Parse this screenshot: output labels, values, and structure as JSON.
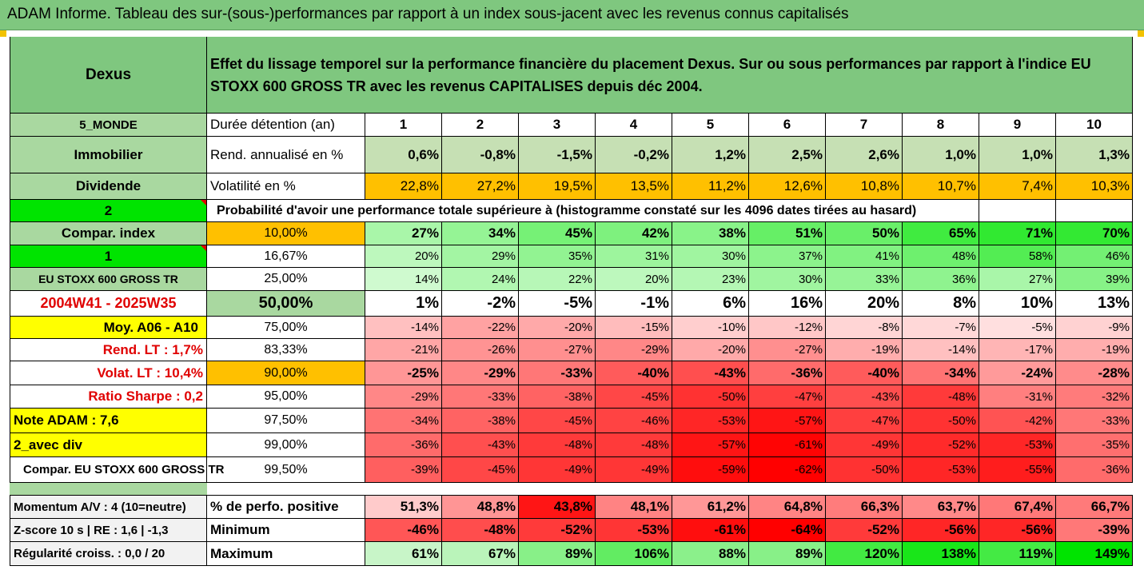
{
  "title": "ADAM Informe. Tableau des sur-(sous-)performances par rapport à un index sous-jacent avec les revenus connus capitalisés",
  "header": {
    "left": "Dexus",
    "line1": "Effet du lissage temporel sur la performance financière du placement Dexus. Sur ou sous performances par rapport à l'indice EU",
    "line2": "STOXX 600 GROSS TR avec les revenus CAPITALISES depuis déc 2004."
  },
  "years": [
    "1",
    "2",
    "3",
    "4",
    "5",
    "6",
    "7",
    "8",
    "9",
    "10"
  ],
  "rows": {
    "duree": {
      "left": "5_MONDE",
      "label": "Durée détention (an)"
    },
    "rend": {
      "left": "Immobilier",
      "label": "Rend. annualisé en %",
      "values": [
        "0,6%",
        "-0,8%",
        "-1,5%",
        "-0,2%",
        "1,2%",
        "2,5%",
        "2,6%",
        "1,0%",
        "1,0%",
        "1,3%"
      ]
    },
    "vol": {
      "left": "Dividende",
      "label": "Volatilité en %",
      "values": [
        "22,8%",
        "27,2%",
        "19,5%",
        "13,5%",
        "11,2%",
        "12,6%",
        "10,8%",
        "10,7%",
        "7,4%",
        "10,3%"
      ]
    },
    "proba": {
      "left": "2",
      "text": "Probabilité d'avoir une performance totale supérieure à (histogramme constaté sur les 4096 dates tirées au hasard)"
    }
  },
  "grid": [
    {
      "left": "Compar. index",
      "pct": "10,00%",
      "values": [
        "27%",
        "34%",
        "45%",
        "42%",
        "38%",
        "51%",
        "50%",
        "65%",
        "71%",
        "70%"
      ]
    },
    {
      "left": "1",
      "pct": "16,67%",
      "values": [
        "20%",
        "29%",
        "35%",
        "31%",
        "30%",
        "37%",
        "41%",
        "48%",
        "58%",
        "46%"
      ]
    },
    {
      "left": "EU STOXX 600 GROSS TR",
      "pct": "25,00%",
      "values": [
        "14%",
        "24%",
        "22%",
        "20%",
        "23%",
        "30%",
        "33%",
        "36%",
        "27%",
        "39%"
      ]
    },
    {
      "left": "2004W41 - 2025W35",
      "pct": "50,00%",
      "values": [
        "1%",
        "-2%",
        "-5%",
        "-1%",
        "6%",
        "16%",
        "20%",
        "8%",
        "10%",
        "13%"
      ]
    },
    {
      "left": "Moy. A06 - A10",
      "pct": "75,00%",
      "values": [
        "-14%",
        "-22%",
        "-20%",
        "-15%",
        "-10%",
        "-12%",
        "-8%",
        "-7%",
        "-5%",
        "-9%"
      ]
    },
    {
      "left": "Rend. LT :   1,7%",
      "pct": "83,33%",
      "values": [
        "-21%",
        "-26%",
        "-27%",
        "-29%",
        "-20%",
        "-27%",
        "-19%",
        "-14%",
        "-17%",
        "-19%"
      ]
    },
    {
      "left": "Volat. LT :   10,4%",
      "pct": "90,00%",
      "values": [
        "-25%",
        "-29%",
        "-33%",
        "-40%",
        "-43%",
        "-36%",
        "-40%",
        "-34%",
        "-24%",
        "-28%"
      ]
    },
    {
      "left": "Ratio Sharpe :   0,2",
      "pct": "95,00%",
      "values": [
        "-29%",
        "-33%",
        "-38%",
        "-45%",
        "-50%",
        "-47%",
        "-43%",
        "-48%",
        "-31%",
        "-32%"
      ]
    },
    {
      "left": "Note ADAM : 7,6",
      "pct": "97,50%",
      "values": [
        "-34%",
        "-38%",
        "-45%",
        "-46%",
        "-53%",
        "-57%",
        "-47%",
        "-50%",
        "-42%",
        "-33%"
      ]
    },
    {
      "left": "2_avec div",
      "pct": "99,00%",
      "values": [
        "-36%",
        "-43%",
        "-48%",
        "-48%",
        "-57%",
        "-61%",
        "-49%",
        "-52%",
        "-53%",
        "-35%"
      ]
    },
    {
      "left": "Compar. EU STOXX 600 GROSS TR",
      "pct": "99,50%",
      "values": [
        "-39%",
        "-45%",
        "-49%",
        "-49%",
        "-59%",
        "-62%",
        "-50%",
        "-53%",
        "-55%",
        "-36%"
      ]
    }
  ],
  "footer": [
    {
      "left": "Momentum A/V : 4 (10=neutre)",
      "label": "% de perfo. positive",
      "values": [
        "51,3%",
        "48,8%",
        "43,8%",
        "48,1%",
        "61,2%",
        "64,8%",
        "66,3%",
        "63,7%",
        "67,4%",
        "66,7%"
      ]
    },
    {
      "left": "Z-score 10 s  |  RE : 1,6  |  -1,3",
      "label": "Minimum",
      "values": [
        "-46%",
        "-48%",
        "-52%",
        "-53%",
        "-61%",
        "-64%",
        "-52%",
        "-56%",
        "-56%",
        "-39%"
      ]
    },
    {
      "left": "Régularité croiss. : 0,0 / 20",
      "label": "Maximum",
      "values": [
        "61%",
        "67%",
        "89%",
        "106%",
        "88%",
        "89%",
        "120%",
        "138%",
        "119%",
        "149%"
      ]
    }
  ],
  "colors": {
    "header_green": "#7fc77f",
    "light_green": "#a9d8a0",
    "bright_green": "#00e400",
    "orange": "#ffc000",
    "yellow": "#ffff00",
    "red": "#ff0000"
  }
}
